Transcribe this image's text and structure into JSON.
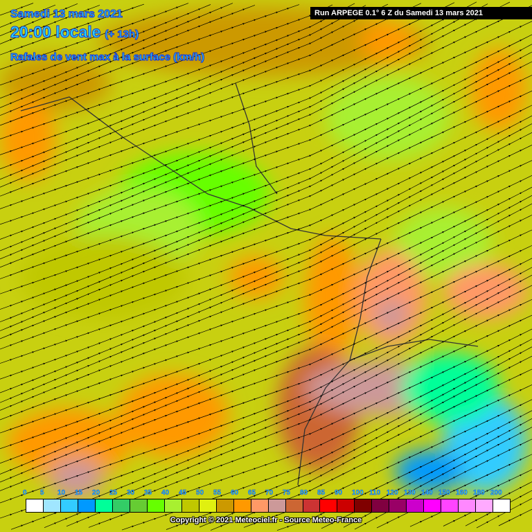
{
  "header": {
    "date": "Samedi 13 mars 2021",
    "time": "20:00 locale",
    "lead": "(+ 13h)",
    "parameter": "Rafales de vent max à la surface (km/h)",
    "run": "Run ARPEGE 0.1° 6 Z du Samedi 13 mars 2021"
  },
  "legend": {
    "labels": [
      "0",
      "5",
      "10",
      "15",
      "20",
      "25",
      "30",
      "35",
      "40",
      "45",
      "50",
      "55",
      "60",
      "65",
      "70",
      "75",
      "80",
      "85",
      "90",
      "100",
      "110",
      "120",
      "130",
      "140",
      "150",
      "160",
      "180",
      "200"
    ],
    "colors": [
      "#ffffff",
      "#a0e6ff",
      "#33ccff",
      "#0099ff",
      "#00ff99",
      "#33cc66",
      "#66cc33",
      "#66ff00",
      "#a8f030",
      "#c0c800",
      "#e0f010",
      "#cc9900",
      "#ff9900",
      "#ff9966",
      "#cc9999",
      "#cc6633",
      "#cc3333",
      "#ff0000",
      "#cc0000",
      "#800000",
      "#800040",
      "#990066",
      "#cc00cc",
      "#ff00ff",
      "#ff44ff",
      "#ff88ff",
      "#ffaaff",
      "#ffffff"
    ]
  },
  "footer": {
    "copyright": "Copyright © 2021 Meteociel.fr - Source Meteo-France"
  }
}
